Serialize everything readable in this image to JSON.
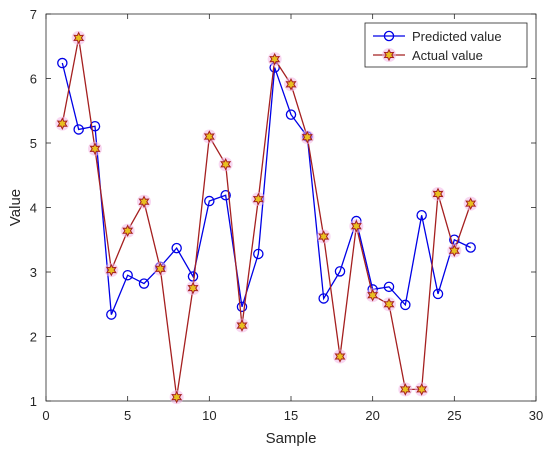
{
  "chart_data": {
    "type": "line",
    "title": "",
    "xlabel": "Sample",
    "ylabel": "Value",
    "xlim": [
      0,
      30
    ],
    "ylim": [
      1,
      7
    ],
    "xticks": [
      0,
      5,
      10,
      15,
      20,
      25,
      30
    ],
    "yticks": [
      1,
      2,
      3,
      4,
      5,
      6,
      7
    ],
    "grid": false,
    "legend": {
      "position": "top-right"
    },
    "x": [
      1,
      2,
      3,
      4,
      5,
      6,
      7,
      8,
      9,
      10,
      11,
      12,
      13,
      14,
      15,
      16,
      17,
      18,
      19,
      20,
      21,
      22,
      23,
      24,
      25,
      26
    ],
    "series": [
      {
        "name": "Predicted value",
        "color": "#0000e6",
        "marker": "circle",
        "values": [
          6.24,
          5.21,
          5.26,
          2.34,
          2.95,
          2.82,
          3.08,
          3.37,
          2.93,
          4.1,
          4.19,
          2.46,
          3.28,
          6.17,
          5.44,
          5.1,
          2.59,
          3.01,
          3.79,
          2.73,
          2.77,
          2.49,
          3.88,
          2.66,
          3.5,
          3.38
        ]
      },
      {
        "name": "Actual value",
        "color": "#a52020",
        "marker": "hexagram",
        "values": [
          5.3,
          6.63,
          4.91,
          3.03,
          3.64,
          4.09,
          3.05,
          1.06,
          2.75,
          5.1,
          4.67,
          2.17,
          4.13,
          6.3,
          5.91,
          5.09,
          3.55,
          1.69,
          3.71,
          2.64,
          2.5,
          1.18,
          1.18,
          4.21,
          3.33,
          4.06
        ]
      }
    ]
  }
}
